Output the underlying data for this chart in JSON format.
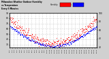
{
  "title_line1": "Milwaukee Weather Outdoor Humidity",
  "title_line2": "vs Temperature",
  "title_line3": "Every 5 Minutes",
  "background_color": "#d0d0d0",
  "plot_bg": "#ffffff",
  "grid_color": "#aaaaaa",
  "temp_color": "#0000ff",
  "humidity_color": "#ff0000",
  "ylim_temp": [
    25,
    90
  ],
  "ylim_humidity": [
    20,
    100
  ],
  "yticks_right": [
    30,
    40,
    50,
    60,
    70,
    80,
    90
  ],
  "yticks_left": [
    20,
    40,
    60,
    80,
    100
  ],
  "n_points": 288,
  "legend_humidity_color": "#ff0000",
  "legend_temp_color": "#0000ff"
}
